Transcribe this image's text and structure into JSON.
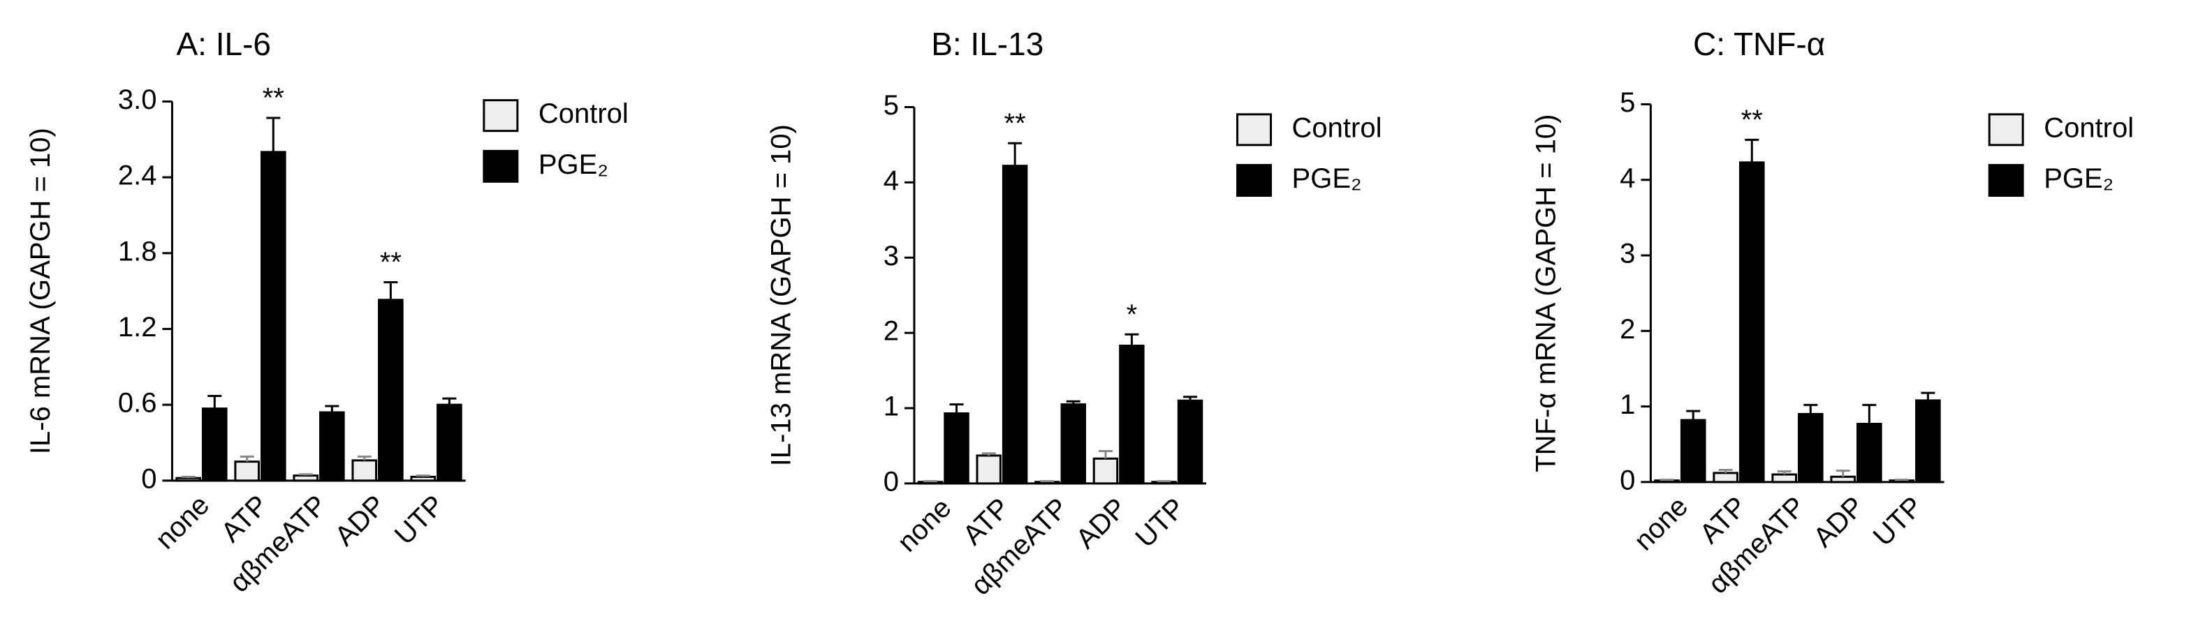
{
  "chart_data": [
    {
      "type": "bar",
      "title": "A: IL-6",
      "y_label": "IL-6 mRNA (GAPGH = 10)",
      "categories": [
        "none",
        "ATP",
        "αβmeATP",
        "ADP",
        "UTP"
      ],
      "ylim": [
        0,
        3
      ],
      "yticks": [
        0,
        0.6,
        1.2,
        1.8,
        2.4,
        {
          "value": 3,
          "label": "3.0"
        }
      ],
      "series": [
        {
          "name": "Control",
          "color": "#eeeeee",
          "values": [
            0.02,
            0.15,
            0.04,
            0.16,
            0.03
          ],
          "errors": [
            0.01,
            0.04,
            0.01,
            0.03,
            0.01
          ]
        },
        {
          "name": "PGE₂",
          "color": "#000000",
          "values": [
            0.57,
            2.6,
            0.54,
            1.43,
            0.6
          ],
          "errors": [
            0.1,
            0.27,
            0.05,
            0.14,
            0.05
          ],
          "annotations": [
            null,
            "**",
            null,
            "**",
            null
          ]
        }
      ]
    },
    {
      "type": "bar",
      "title": "B: IL-13",
      "y_label": "IL-13 mRNA (GAPGH = 10)",
      "categories": [
        "none",
        "ATP",
        "αβmeATP",
        "ADP",
        "UTP"
      ],
      "ylim": [
        0,
        5
      ],
      "yticks": [
        0,
        1,
        2,
        3,
        4,
        5
      ],
      "series": [
        {
          "name": "Control",
          "color": "#eeeeee",
          "values": [
            0.02,
            0.37,
            0.02,
            0.33,
            0.02
          ],
          "errors": [
            0.01,
            0.03,
            0.01,
            0.1,
            0.01
          ]
        },
        {
          "name": "PGE₂",
          "color": "#000000",
          "values": [
            0.93,
            4.22,
            1.05,
            1.83,
            1.1
          ],
          "errors": [
            0.12,
            0.3,
            0.04,
            0.15,
            0.05
          ],
          "annotations": [
            null,
            "**",
            null,
            "*",
            null
          ]
        }
      ]
    },
    {
      "type": "bar",
      "title": "C: TNF-α",
      "y_label": "TNF-α mRNA (GAPGH = 10)",
      "categories": [
        "none",
        "ATP",
        "αβmeATP",
        "ADP",
        "UTP"
      ],
      "ylim": [
        0,
        5
      ],
      "yticks": [
        0,
        1,
        2,
        3,
        4,
        5
      ],
      "series": [
        {
          "name": "Control",
          "color": "#eeeeee",
          "values": [
            0.02,
            0.12,
            0.1,
            0.07,
            0.02
          ],
          "errors": [
            0.01,
            0.04,
            0.04,
            0.08,
            0.01
          ]
        },
        {
          "name": "PGE₂",
          "color": "#000000",
          "values": [
            0.82,
            4.23,
            0.9,
            0.77,
            1.08
          ],
          "errors": [
            0.12,
            0.3,
            0.12,
            0.25,
            0.1
          ],
          "annotations": [
            null,
            "**",
            null,
            null,
            null
          ]
        }
      ]
    }
  ]
}
